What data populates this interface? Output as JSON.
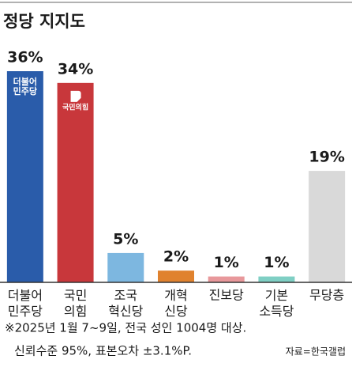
{
  "chart_data": {
    "type": "bar",
    "title": "정당 지지도",
    "categories": [
      "더불어\n민주당",
      "국민\n의힘",
      "조국\n혁신당",
      "개혁\n신당",
      "진보당",
      "기본\n소득당",
      "무당층"
    ],
    "values": [
      36,
      34,
      5,
      2,
      1,
      1,
      19
    ],
    "value_labels": [
      "36%",
      "34%",
      "5%",
      "2%",
      "1%",
      "1%",
      "19%"
    ],
    "colors": [
      "#2a5caa",
      "#c8373b",
      "#7db7e0",
      "#e0822e",
      "#e8989b",
      "#7fcfc4",
      "#d9d9d9"
    ],
    "ylim": [
      0,
      36
    ],
    "bar_logos": [
      "더불어\n민주당",
      "국민의힘"
    ],
    "notes": [
      "※2025년 1월 7~9일, 전국 성인 1004명 대상.",
      "신뢰수준 95%, 표본오차 ±3.1%P."
    ],
    "source": "자료=한국갤럽"
  }
}
